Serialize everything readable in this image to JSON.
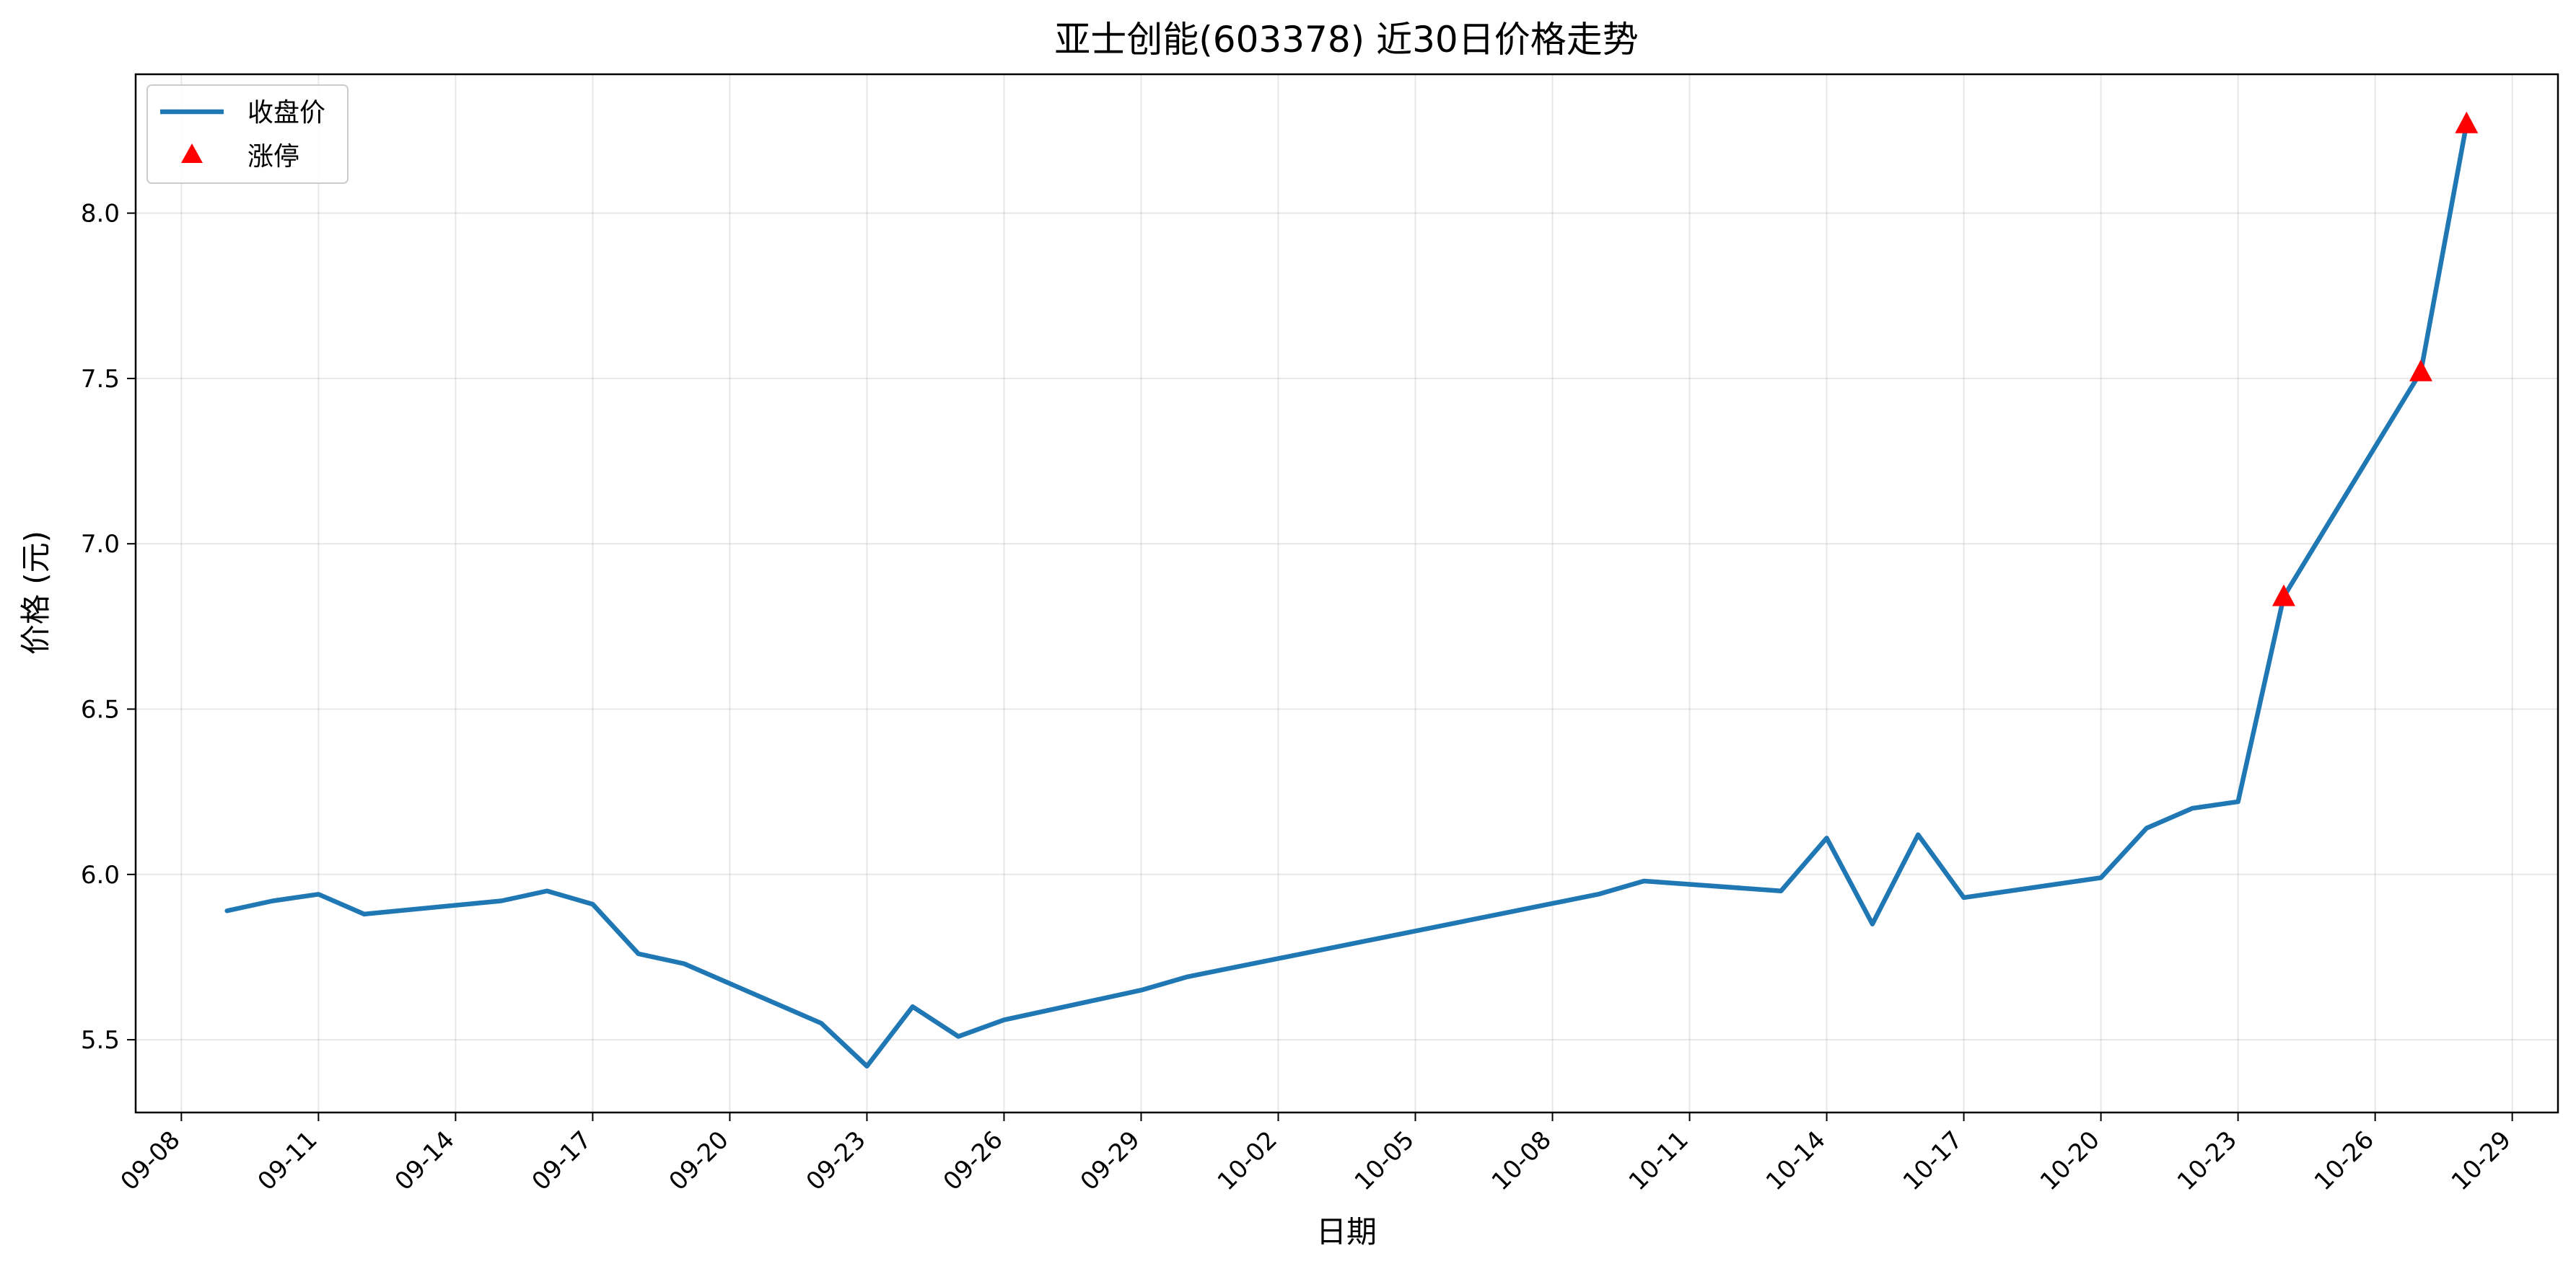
{
  "chart_data": {
    "type": "line",
    "title": "亚士创能(603378) 近30日价格走势",
    "xlabel": "日期",
    "ylabel": "价格 (元)",
    "x_ticks": [
      "09-08",
      "09-11",
      "09-14",
      "09-17",
      "09-20",
      "09-23",
      "09-26",
      "09-29",
      "10-02",
      "10-05",
      "10-08",
      "10-11",
      "10-14",
      "10-17",
      "10-20",
      "10-23",
      "10-26",
      "10-29"
    ],
    "y_ticks": [
      "5.5",
      "6.0",
      "6.5",
      "7.0",
      "7.5",
      "8.0"
    ],
    "xlim": [
      "2025-09-07",
      "2025-10-30"
    ],
    "ylim": [
      5.28,
      8.42
    ],
    "grid": true,
    "legend_position": "top-left",
    "series": [
      {
        "name": "收盘价",
        "type": "line",
        "color": "#1f77b4",
        "x": [
          "2025-09-09",
          "2025-09-10",
          "2025-09-11",
          "2025-09-12",
          "2025-09-15",
          "2025-09-16",
          "2025-09-17",
          "2025-09-18",
          "2025-09-19",
          "2025-09-22",
          "2025-09-23",
          "2025-09-24",
          "2025-09-25",
          "2025-09-26",
          "2025-09-29",
          "2025-09-30",
          "2025-10-09",
          "2025-10-10",
          "2025-10-13",
          "2025-10-14",
          "2025-10-15",
          "2025-10-16",
          "2025-10-17",
          "2025-10-20",
          "2025-10-21",
          "2025-10-22",
          "2025-10-23",
          "2025-10-24",
          "2025-10-27",
          "2025-10-28"
        ],
        "values": [
          5.89,
          5.92,
          5.94,
          5.88,
          5.92,
          5.95,
          5.91,
          5.76,
          5.73,
          5.55,
          5.42,
          5.6,
          5.51,
          5.56,
          5.65,
          5.69,
          5.94,
          5.98,
          5.95,
          6.11,
          5.85,
          6.12,
          5.93,
          5.99,
          6.14,
          6.2,
          6.22,
          6.84,
          7.52,
          8.27
        ]
      },
      {
        "name": "涨停",
        "type": "scatter",
        "marker": "triangle-up",
        "color": "#ff0000",
        "x": [
          "2025-10-24",
          "2025-10-27",
          "2025-10-28"
        ],
        "values": [
          6.84,
          7.52,
          8.27
        ]
      }
    ]
  }
}
